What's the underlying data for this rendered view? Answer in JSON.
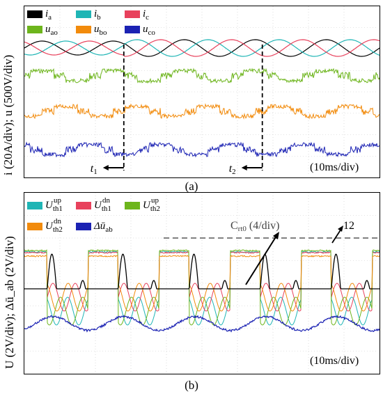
{
  "panel_a": {
    "y_axis_label": "i (20A/div);  u (500V/div)",
    "time_scale": "(10ms/div)",
    "caption": "(a)",
    "legend": [
      {
        "symbol": "i",
        "sub": "a",
        "color": "#000000"
      },
      {
        "symbol": "i",
        "sub": "b",
        "color": "#1fb5b5"
      },
      {
        "symbol": "i",
        "sub": "c",
        "color": "#e8415c"
      },
      {
        "symbol": "u",
        "sub": "ao",
        "color": "#6db51c"
      },
      {
        "symbol": "u",
        "sub": "bo",
        "color": "#f28b0c"
      },
      {
        "symbol": "u",
        "sub": "co",
        "color": "#1b22b3"
      }
    ],
    "markers": [
      {
        "label": "t",
        "sub": "1",
        "time_ms": 28
      },
      {
        "label": "t",
        "sub": "2",
        "time_ms": 67
      }
    ]
  },
  "panel_b": {
    "y_axis_label": "U (2V/div);  Δū_ab (2V/div)",
    "time_scale": "(10ms/div)",
    "caption": "(b)",
    "legend": [
      {
        "symbol": "U",
        "sub": "th1",
        "sup": "up",
        "color": "#1fb5b5"
      },
      {
        "symbol": "U",
        "sub": "th1",
        "sup": "dn",
        "color": "#e8415c"
      },
      {
        "symbol": "U",
        "sub": "th2",
        "sup": "up",
        "color": "#6db51c"
      },
      {
        "symbol": "U",
        "sub": "th2",
        "sup": "dn",
        "color": "#f28b0c"
      },
      {
        "symbol": "Δū",
        "sub": "ab",
        "sup": "",
        "color": "#1b22b3"
      }
    ],
    "annotation_counter": "C",
    "annotation_counter_sub": "rt0",
    "annotation_counter_scale": " (4/div)",
    "annotation_value": "12"
  },
  "chart_data": [
    {
      "type": "line",
      "panel": "a",
      "x_unit": "ms",
      "x_range": [
        0,
        100
      ],
      "series": [
        {
          "name": "i_a",
          "kind": "sinusoid",
          "period_ms": 20
        },
        {
          "name": "i_b",
          "kind": "sinusoid",
          "period_ms": 20
        },
        {
          "name": "i_c",
          "kind": "sinusoid",
          "period_ms": 20
        },
        {
          "name": "u_ao",
          "kind": "PWM stepped",
          "period_ms": 20
        },
        {
          "name": "u_bo",
          "kind": "PWM stepped",
          "period_ms": 20
        },
        {
          "name": "u_co",
          "kind": "PWM stepped",
          "period_ms": 20
        }
      ],
      "events": [
        {
          "name": "t1",
          "x": 28
        },
        {
          "name": "t2",
          "x": 67
        }
      ],
      "grid": true
    },
    {
      "type": "line",
      "panel": "b",
      "x_unit": "ms",
      "x_range": [
        0,
        100
      ],
      "series": [
        {
          "name": "U_th1^up"
        },
        {
          "name": "U_th1^dn"
        },
        {
          "name": "U_th2^up"
        },
        {
          "name": "U_th2^dn"
        },
        {
          "name": "Δū_ab"
        },
        {
          "name": "C_rt0"
        }
      ],
      "C_rt0_level": 12,
      "grid": true
    }
  ]
}
